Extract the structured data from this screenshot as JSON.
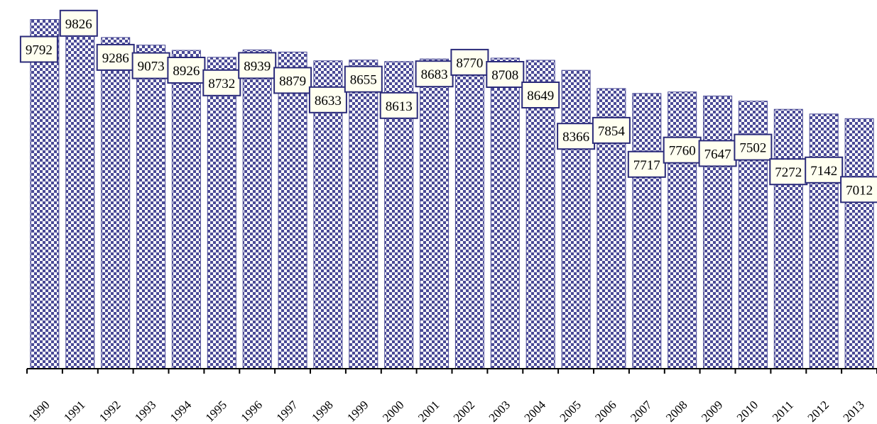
{
  "chart_data": {
    "type": "bar",
    "title": "",
    "xlabel": "",
    "ylabel": "",
    "categories": [
      "1990",
      "1991",
      "1992",
      "1993",
      "1994",
      "1995",
      "1996",
      "1997",
      "1998",
      "1999",
      "2000",
      "2001",
      "2002",
      "2003",
      "2004",
      "2005",
      "2006",
      "2007",
      "2008",
      "2009",
      "2010",
      "2011",
      "2012",
      "2013"
    ],
    "values": [
      9792,
      9826,
      9286,
      9073,
      8926,
      8732,
      8939,
      8879,
      8633,
      8655,
      8613,
      8683,
      8770,
      8708,
      8649,
      8366,
      7854,
      7717,
      7760,
      7647,
      7502,
      7272,
      7142,
      7012
    ],
    "ylim": [
      0,
      10000
    ],
    "grid": false,
    "legend": "none",
    "data_labels": true,
    "colors": {
      "bar_pattern": "#4a4a96",
      "bar_background": "#ffffff",
      "label_fill": "#fffff0",
      "label_border": "#2b2b7a",
      "axis": "#000000"
    }
  }
}
